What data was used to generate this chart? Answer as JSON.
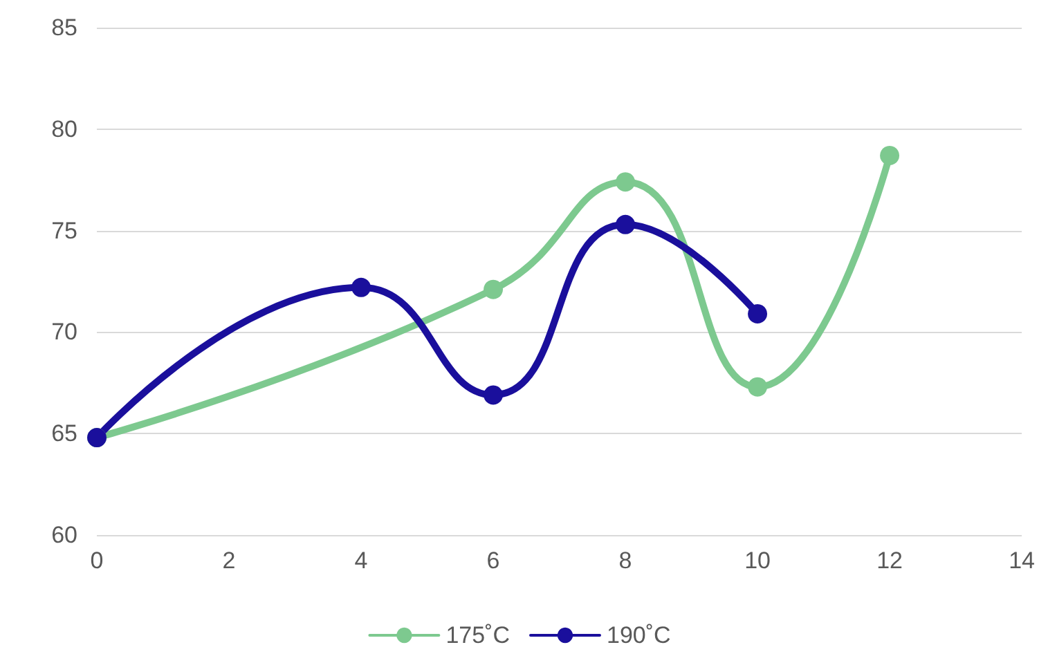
{
  "chart_data": {
    "type": "line",
    "xlim": [
      0,
      14
    ],
    "xticks": [
      0,
      2,
      4,
      6,
      8,
      10,
      12,
      14
    ],
    "ylim": [
      60,
      85
    ],
    "yticks": [
      60,
      65,
      70,
      75,
      80,
      85
    ],
    "grid": "y",
    "legend": "bottom",
    "marker": "circle",
    "line_style": "solid",
    "series": [
      {
        "name": "175˚C",
        "color": "#7dc98f",
        "x": [
          0,
          6,
          8,
          10,
          12
        ],
        "values": [
          64.8,
          72.1,
          77.4,
          67.3,
          78.7
        ]
      },
      {
        "name": "190˚C",
        "color": "#1a0f9c",
        "x": [
          0,
          4,
          6,
          8,
          10
        ],
        "values": [
          64.8,
          72.2,
          66.9,
          75.3,
          70.9
        ]
      }
    ]
  }
}
